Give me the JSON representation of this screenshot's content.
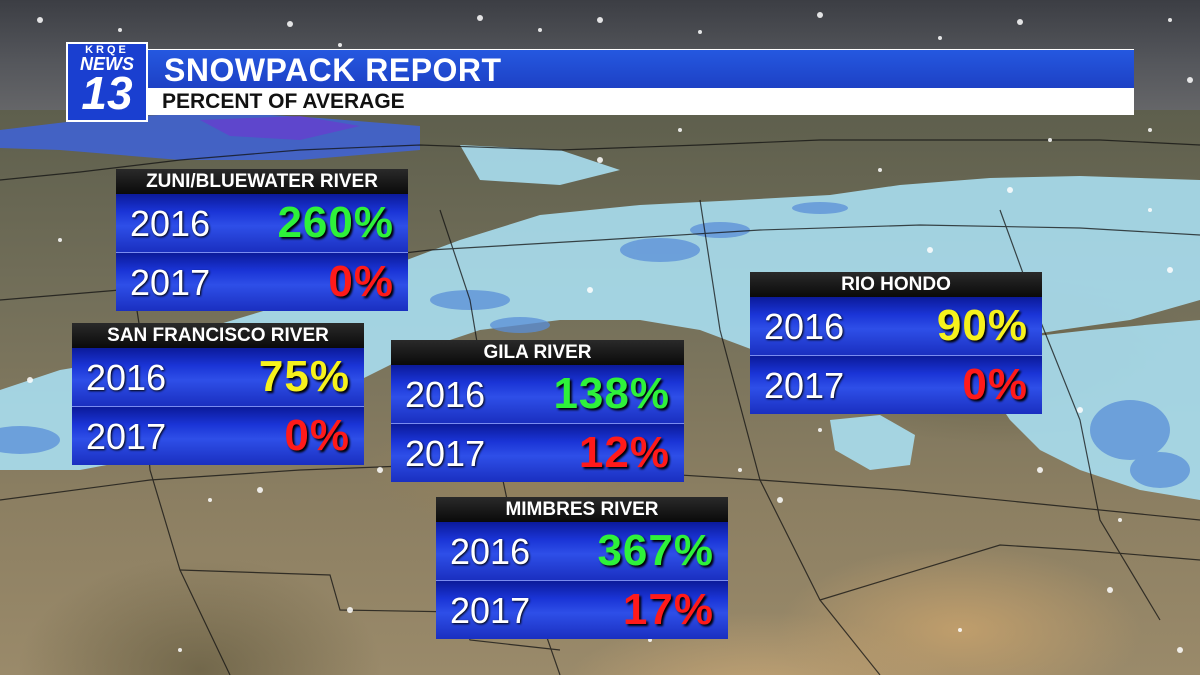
{
  "header": {
    "logo_call": "KRQE",
    "logo_news": "NEWS",
    "logo_channel": "13",
    "title": "SNOWPACK REPORT",
    "subtitle": "PERCENT OF AVERAGE"
  },
  "colors": {
    "high": "#2ef23a",
    "mid": "#f6f21c",
    "low": "#ff1a1a"
  },
  "panels": [
    {
      "name": "ZUNI/BLUEWATER RIVER",
      "rows": [
        {
          "year": "2016",
          "value": "260%",
          "level": "high"
        },
        {
          "year": "2017",
          "value": "0%",
          "level": "low"
        }
      ]
    },
    {
      "name": "SAN FRANCISCO RIVER",
      "rows": [
        {
          "year": "2016",
          "value": "75%",
          "level": "mid"
        },
        {
          "year": "2017",
          "value": "0%",
          "level": "low"
        }
      ]
    },
    {
      "name": "GILA RIVER",
      "rows": [
        {
          "year": "2016",
          "value": "138%",
          "level": "high"
        },
        {
          "year": "2017",
          "value": "12%",
          "level": "low"
        }
      ]
    },
    {
      "name": "MIMBRES RIVER",
      "rows": [
        {
          "year": "2016",
          "value": "367%",
          "level": "high"
        },
        {
          "year": "2017",
          "value": "17%",
          "level": "low"
        }
      ]
    },
    {
      "name": "RIO HONDO",
      "rows": [
        {
          "year": "2016",
          "value": "90%",
          "level": "mid"
        },
        {
          "year": "2017",
          "value": "0%",
          "level": "low"
        }
      ]
    }
  ]
}
